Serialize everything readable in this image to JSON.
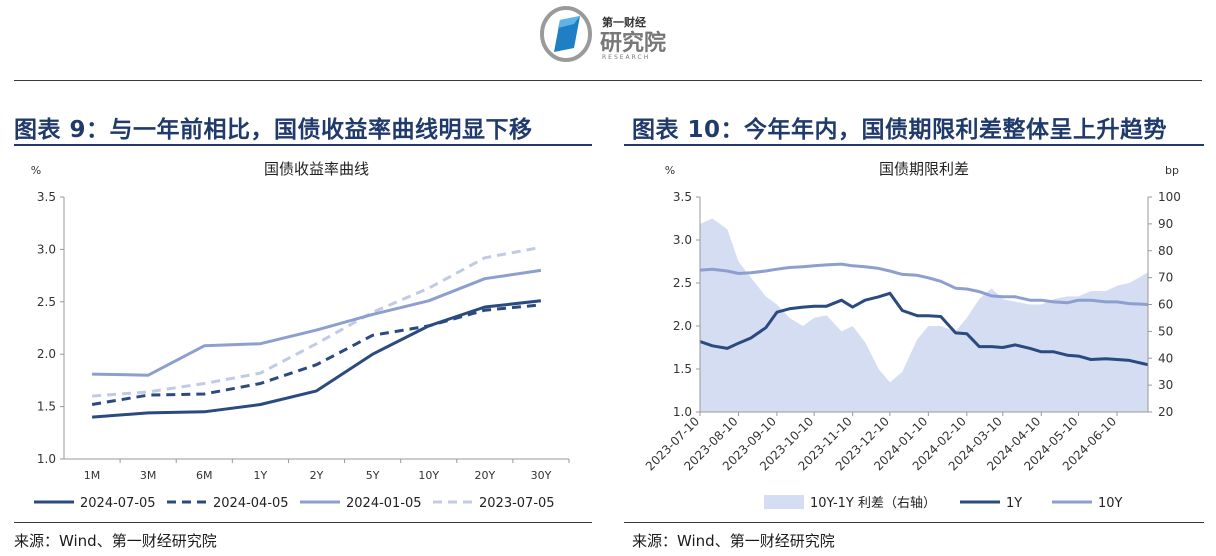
{
  "logo": {
    "line1": "第一财经",
    "line2": "研究院",
    "line3": "RESEARCH"
  },
  "left_panel": {
    "figure_title": "图表 9：与一年前相比，国债收益率曲线明显下移",
    "source": "来源：Wind、第一财经研究院"
  },
  "right_panel": {
    "figure_title": "图表 10：今年年内，国债期限利差整体呈上升趋势",
    "source": "来源：Wind、第一财经研究院"
  },
  "chart_data": [
    {
      "type": "line",
      "title": "国债收益率曲线",
      "ylabel": "%",
      "xlabel": "",
      "ylim": [
        1.0,
        3.5
      ],
      "yticks": [
        "3.5",
        "3.0",
        "2.5",
        "2.0",
        "1.5",
        "1.0"
      ],
      "categories": [
        "1M",
        "3M",
        "6M",
        "1Y",
        "2Y",
        "5Y",
        "10Y",
        "20Y",
        "30Y"
      ],
      "legend_position": "bottom",
      "series": [
        {
          "name": "2024-07-05",
          "color": "#2b4a7f",
          "dash": "solid",
          "values": [
            1.4,
            1.44,
            1.45,
            1.52,
            1.65,
            2.0,
            2.27,
            2.45,
            2.51
          ]
        },
        {
          "name": "2024-04-05",
          "color": "#2b4a7f",
          "dash": "dashed",
          "values": [
            1.52,
            1.61,
            1.62,
            1.72,
            1.9,
            2.18,
            2.27,
            2.42,
            2.47
          ]
        },
        {
          "name": "2024-01-05",
          "color": "#8d9fcf",
          "dash": "solid",
          "values": [
            1.81,
            1.8,
            2.08,
            2.1,
            2.23,
            2.38,
            2.51,
            2.72,
            2.8
          ]
        },
        {
          "name": "2023-07-05",
          "color": "#c2cbe3",
          "dash": "dashed",
          "values": [
            1.6,
            1.64,
            1.72,
            1.82,
            2.1,
            2.4,
            2.63,
            2.92,
            3.02
          ]
        }
      ]
    },
    {
      "type": "line",
      "title": "国债期限利差",
      "ylabel": "%",
      "y2label": "bp",
      "ylim": [
        1.0,
        3.5
      ],
      "y2lim": [
        20,
        100
      ],
      "yticks": [
        "3.5",
        "3.0",
        "2.5",
        "2.0",
        "1.5",
        "1.0"
      ],
      "y2ticks": [
        "100",
        "90",
        "80",
        "70",
        "60",
        "50",
        "40",
        "30",
        "20"
      ],
      "xlim": [
        "2023-07-10",
        "2024-07-05"
      ],
      "categories": [
        "2023-07-10",
        "2023-08-10",
        "2023-09-10",
        "2023-10-10",
        "2023-11-10",
        "2023-12-10",
        "2024-01-10",
        "2024-02-10",
        "2024-03-10",
        "2024-04-10",
        "2024-05-10",
        "2024-06-10"
      ],
      "legend_position": "bottom",
      "series": [
        {
          "name": "10Y-1Y 利差（右轴）",
          "axis": "right",
          "type": "area",
          "color": "#d4ddf2",
          "x": [
            "2023-07-10",
            "2023-07-20",
            "2023-08-01",
            "2023-08-10",
            "2023-08-20",
            "2023-09-01",
            "2023-09-10",
            "2023-09-20",
            "2023-10-01",
            "2023-10-10",
            "2023-10-20",
            "2023-11-01",
            "2023-11-10",
            "2023-11-20",
            "2023-12-01",
            "2023-12-10",
            "2023-12-20",
            "2024-01-01",
            "2024-01-10",
            "2024-01-20",
            "2024-02-01",
            "2024-02-10",
            "2024-02-20",
            "2024-03-01",
            "2024-03-10",
            "2024-03-20",
            "2024-04-01",
            "2024-04-10",
            "2024-04-20",
            "2024-05-01",
            "2024-05-10",
            "2024-05-20",
            "2024-06-01",
            "2024-06-10",
            "2024-06-20",
            "2024-07-05"
          ],
          "values": [
            90,
            92,
            88,
            76,
            70,
            63,
            60,
            55,
            52,
            55,
            56,
            50,
            52,
            46,
            36,
            31,
            35,
            47,
            52,
            52,
            50,
            55,
            62,
            66,
            62,
            61,
            60,
            60,
            62,
            63,
            63,
            65,
            65,
            67,
            68,
            72
          ]
        },
        {
          "name": "1Y",
          "axis": "left",
          "color": "#2b4a7f",
          "x": [
            "2023-07-10",
            "2023-07-20",
            "2023-08-01",
            "2023-08-10",
            "2023-08-20",
            "2023-09-01",
            "2023-09-10",
            "2023-09-20",
            "2023-10-01",
            "2023-10-10",
            "2023-10-20",
            "2023-11-01",
            "2023-11-10",
            "2023-11-20",
            "2023-12-01",
            "2023-12-10",
            "2023-12-20",
            "2024-01-01",
            "2024-01-10",
            "2024-01-20",
            "2024-02-01",
            "2024-02-10",
            "2024-02-20",
            "2024-03-01",
            "2024-03-10",
            "2024-03-20",
            "2024-04-01",
            "2024-04-10",
            "2024-04-20",
            "2024-05-01",
            "2024-05-10",
            "2024-05-20",
            "2024-06-01",
            "2024-06-10",
            "2024-06-20",
            "2024-07-05"
          ],
          "values": [
            1.82,
            1.77,
            1.74,
            1.8,
            1.86,
            1.98,
            2.16,
            2.2,
            2.22,
            2.23,
            2.23,
            2.3,
            2.22,
            2.3,
            2.34,
            2.38,
            2.18,
            2.12,
            2.12,
            2.11,
            1.92,
            1.91,
            1.76,
            1.76,
            1.75,
            1.78,
            1.74,
            1.7,
            1.7,
            1.66,
            1.65,
            1.61,
            1.62,
            1.61,
            1.6,
            1.55
          ]
        },
        {
          "name": "10Y",
          "axis": "left",
          "color": "#8d9fcf",
          "x": [
            "2023-07-10",
            "2023-07-20",
            "2023-08-01",
            "2023-08-10",
            "2023-08-20",
            "2023-09-01",
            "2023-09-10",
            "2023-09-20",
            "2023-10-01",
            "2023-10-10",
            "2023-10-20",
            "2023-11-01",
            "2023-11-10",
            "2023-11-20",
            "2023-12-01",
            "2023-12-10",
            "2023-12-20",
            "2024-01-01",
            "2024-01-10",
            "2024-01-20",
            "2024-02-01",
            "2024-02-10",
            "2024-02-20",
            "2024-03-01",
            "2024-03-10",
            "2024-03-20",
            "2024-04-01",
            "2024-04-10",
            "2024-04-20",
            "2024-05-01",
            "2024-05-10",
            "2024-05-20",
            "2024-06-01",
            "2024-06-10",
            "2024-06-20",
            "2024-07-05"
          ],
          "values": [
            2.65,
            2.66,
            2.64,
            2.61,
            2.62,
            2.64,
            2.66,
            2.68,
            2.69,
            2.7,
            2.71,
            2.72,
            2.7,
            2.69,
            2.67,
            2.64,
            2.6,
            2.59,
            2.56,
            2.52,
            2.44,
            2.43,
            2.4,
            2.35,
            2.34,
            2.34,
            2.3,
            2.3,
            2.28,
            2.27,
            2.3,
            2.3,
            2.28,
            2.28,
            2.26,
            2.25
          ]
        }
      ]
    }
  ]
}
